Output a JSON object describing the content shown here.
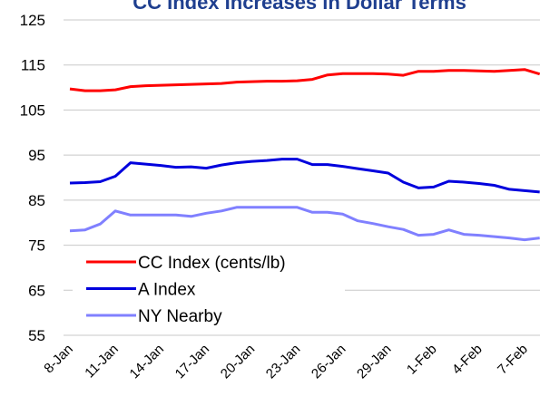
{
  "chart_data": {
    "type": "line",
    "title": "CC Index Increases in Dollar Terms",
    "categories": [
      "8-Jan",
      null,
      null,
      "11-Jan",
      null,
      null,
      "14-Jan",
      null,
      null,
      "17-Jan",
      null,
      null,
      "20-Jan",
      null,
      null,
      "23-Jan",
      null,
      null,
      "26-Jan",
      null,
      null,
      "29-Jan",
      null,
      null,
      "1-Feb",
      null,
      null,
      "4-Feb",
      null,
      null,
      "7-Feb",
      null
    ],
    "series": [
      {
        "name": "CC Index (cents/lb)",
        "color": "#ff0000",
        "values": [
          109.7,
          109.3,
          109.3,
          109.5,
          110.2,
          110.4,
          110.5,
          110.6,
          110.7,
          110.8,
          110.9,
          111.2,
          111.3,
          111.4,
          111.4,
          111.5,
          111.8,
          112.8,
          113.1,
          113.1,
          113.1,
          113.0,
          112.7,
          113.6,
          113.6,
          113.8,
          113.8,
          113.7,
          113.6,
          113.8,
          114.0,
          113.0
        ]
      },
      {
        "name": "A Index",
        "color": "#0000dd",
        "values": [
          88.8,
          88.9,
          89.1,
          90.3,
          93.3,
          93.0,
          92.7,
          92.3,
          92.4,
          92.1,
          92.8,
          93.3,
          93.6,
          93.8,
          94.1,
          94.1,
          92.9,
          92.9,
          92.5,
          92.0,
          91.5,
          91.0,
          89.0,
          87.7,
          87.9,
          89.2,
          89.0,
          88.7,
          88.3,
          87.4,
          87.1,
          86.8
        ]
      },
      {
        "name": "NY Nearby",
        "color": "#8080ff",
        "values": [
          78.2,
          78.4,
          79.7,
          82.6,
          81.7,
          81.7,
          81.7,
          81.7,
          81.4,
          82.1,
          82.6,
          83.4,
          83.4,
          83.4,
          83.4,
          83.4,
          82.3,
          82.3,
          81.9,
          80.4,
          79.8,
          79.1,
          78.5,
          77.2,
          77.4,
          78.4,
          77.4,
          77.2,
          76.9,
          76.6,
          76.2,
          76.6
        ]
      }
    ],
    "ylim": [
      55,
      125
    ],
    "yticks": [
      55,
      65,
      75,
      85,
      95,
      105,
      115,
      125
    ],
    "grid": true
  }
}
